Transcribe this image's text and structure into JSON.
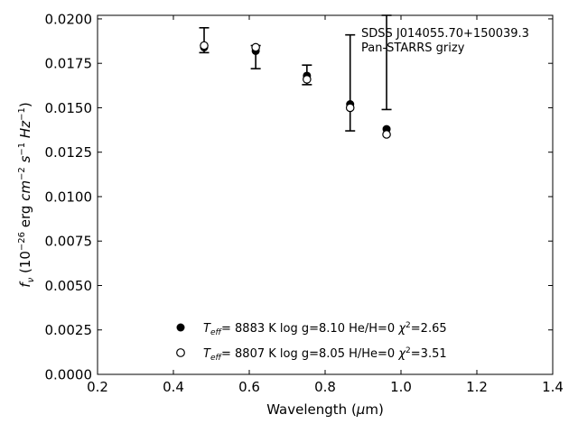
{
  "chart_data": {
    "type": "scatter",
    "xlabel": "Wavelength (μm)",
    "ylabel": "fν (10⁻²⁶ erg cm⁻² s⁻¹ Hz⁻¹)",
    "xlim": [
      0.2,
      1.4
    ],
    "ylim": [
      0.0,
      0.0202
    ],
    "xticks": [
      0.2,
      0.4,
      0.6,
      0.8,
      1.0,
      1.2,
      1.4
    ],
    "xtick_labels": [
      "0.2",
      "0.4",
      "0.6",
      "0.8",
      "1.0",
      "1.2",
      "1.4"
    ],
    "yticks": [
      0.0,
      0.0025,
      0.005,
      0.0075,
      0.01,
      0.0125,
      0.015,
      0.0175,
      0.02
    ],
    "ytick_labels": [
      "0.0000",
      "0.0025",
      "0.0050",
      "0.0075",
      "0.0100",
      "0.0125",
      "0.0150",
      "0.0175",
      "0.0200"
    ],
    "grid": false,
    "annotation": {
      "line1": "SDSS J014055.70+150039.3",
      "line2": "Pan-STARRS grizy"
    },
    "observed": {
      "x": [
        0.481,
        0.617,
        0.752,
        0.866,
        0.962
      ],
      "y_low": [
        0.0181,
        0.0172,
        0.0163,
        0.0137,
        0.0149
      ],
      "y_high": [
        0.0195,
        0.0185,
        0.0174,
        0.0191,
        0.0202
      ]
    },
    "series": [
      {
        "name": "Teff= 8883 K log g=8.10 He/H=0 χ2=2.65",
        "marker": "filled-circle",
        "x": [
          0.481,
          0.617,
          0.752,
          0.866,
          0.962
        ],
        "y": [
          0.0184,
          0.0182,
          0.0168,
          0.0152,
          0.0138
        ]
      },
      {
        "name": "Teff= 8807 K log g=8.05 H/He=0 χ2=3.51",
        "marker": "open-circle",
        "x": [
          0.481,
          0.617,
          0.752,
          0.866,
          0.962
        ],
        "y": [
          0.0185,
          0.0184,
          0.0166,
          0.015,
          0.0135
        ]
      }
    ]
  },
  "legend": [
    {
      "teff": "8883 K",
      "logg": "log g=8.10",
      "comp": "He/H=0",
      "chi": "=2.65"
    },
    {
      "teff": "8807 K",
      "logg": "log g=8.05",
      "comp": "H/He=0",
      "chi": "=3.51"
    }
  ]
}
